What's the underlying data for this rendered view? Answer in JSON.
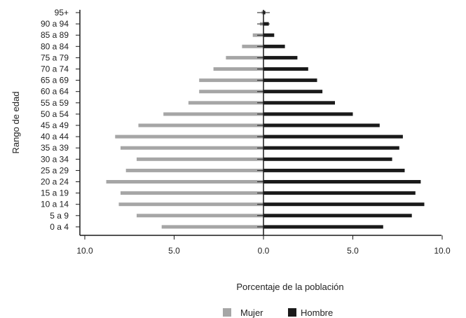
{
  "chart_data": {
    "type": "bar",
    "orientation": "horizontal",
    "layout": "population-pyramid",
    "categories": [
      "0 a 4",
      "5 a 9",
      "10 a 14",
      "15 a 19",
      "20 a 24",
      "25 a 29",
      "30 a 34",
      "35 a 39",
      "40 a 44",
      "45 a 49",
      "50 a 54",
      "55 a 59",
      "60 a 64",
      "65 a 69",
      "70 a 74",
      "75 a 79",
      "80 a 84",
      "85 a 89",
      "90 a 94",
      "95+"
    ],
    "series": [
      {
        "name": "Mujer",
        "side": "left",
        "color": "#a6a6a6",
        "values": [
          5.7,
          7.1,
          8.1,
          8.0,
          8.8,
          7.7,
          7.1,
          8.0,
          8.3,
          7.0,
          5.6,
          4.2,
          3.6,
          3.6,
          2.8,
          2.1,
          1.2,
          0.6,
          0.2,
          0.1
        ]
      },
      {
        "name": "Hombre",
        "side": "right",
        "color": "#1a1a1a",
        "values": [
          6.7,
          8.3,
          9.0,
          8.5,
          8.8,
          7.9,
          7.2,
          7.6,
          7.8,
          6.5,
          5.0,
          4.0,
          3.3,
          3.0,
          2.5,
          1.9,
          1.2,
          0.6,
          0.3,
          0.1
        ]
      }
    ],
    "x_ticks": [
      {
        "label": "10.0",
        "value": -10
      },
      {
        "label": "5.0",
        "value": -5
      },
      {
        "label": "0.0",
        "value": 0
      },
      {
        "label": "5.0",
        "value": 5
      },
      {
        "label": "10.0",
        "value": 10
      }
    ],
    "xlim": [
      -10,
      10
    ],
    "xlabel": "Porcentaje de la población",
    "ylabel": "Rango de edad",
    "legend_position": "bottom-center",
    "grid": false
  }
}
